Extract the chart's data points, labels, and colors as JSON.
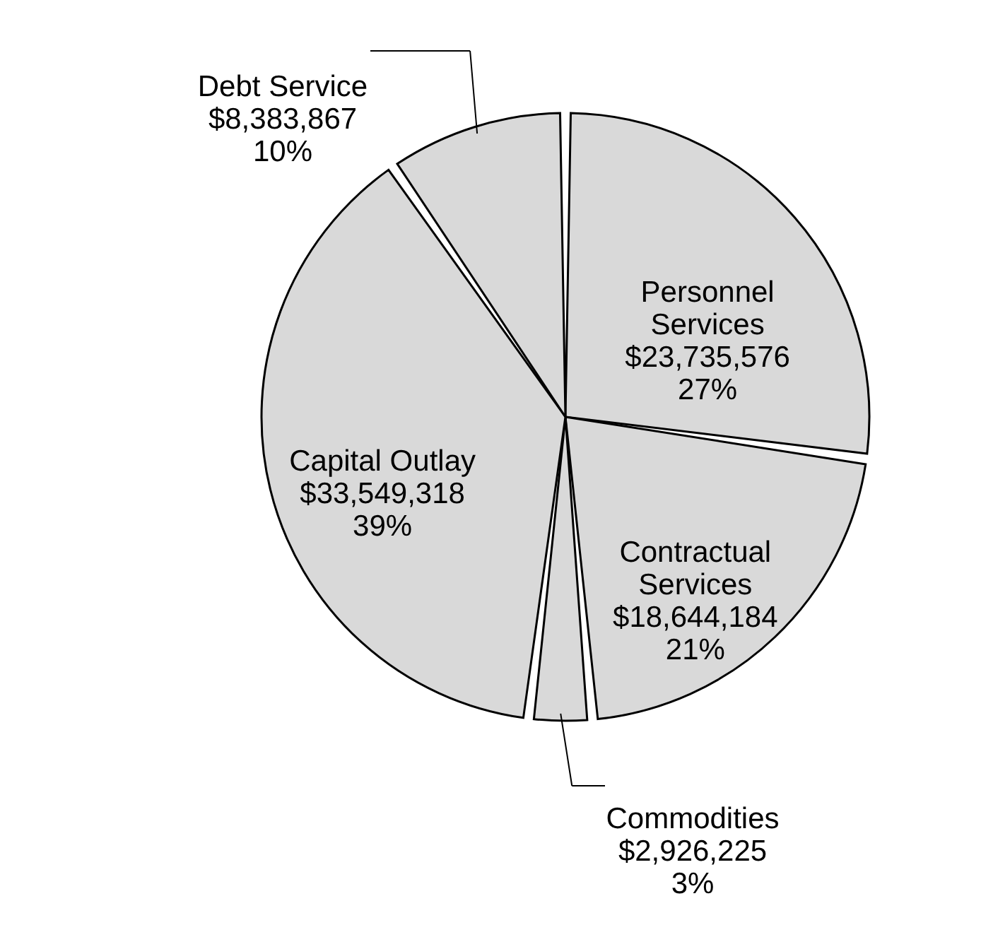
{
  "chart_data": {
    "type": "pie",
    "categories": [
      "Personnel\nServices",
      "Contractual\nServices",
      "Commodities",
      "Capital Outlay",
      "Debt Service"
    ],
    "values": [
      23735576,
      18644184,
      2926225,
      33549318,
      8383867
    ],
    "value_labels": [
      "$23,735,576\n27%",
      "$18,644,184\n21%",
      "$2,926,225\n3%",
      "$33,549,318\n39%",
      "$8,383,867\n10%"
    ],
    "colors": [
      "#d9d9d9",
      "#d9d9d9",
      "#d9d9d9",
      "#d9d9d9",
      "#d9d9d9"
    ]
  }
}
